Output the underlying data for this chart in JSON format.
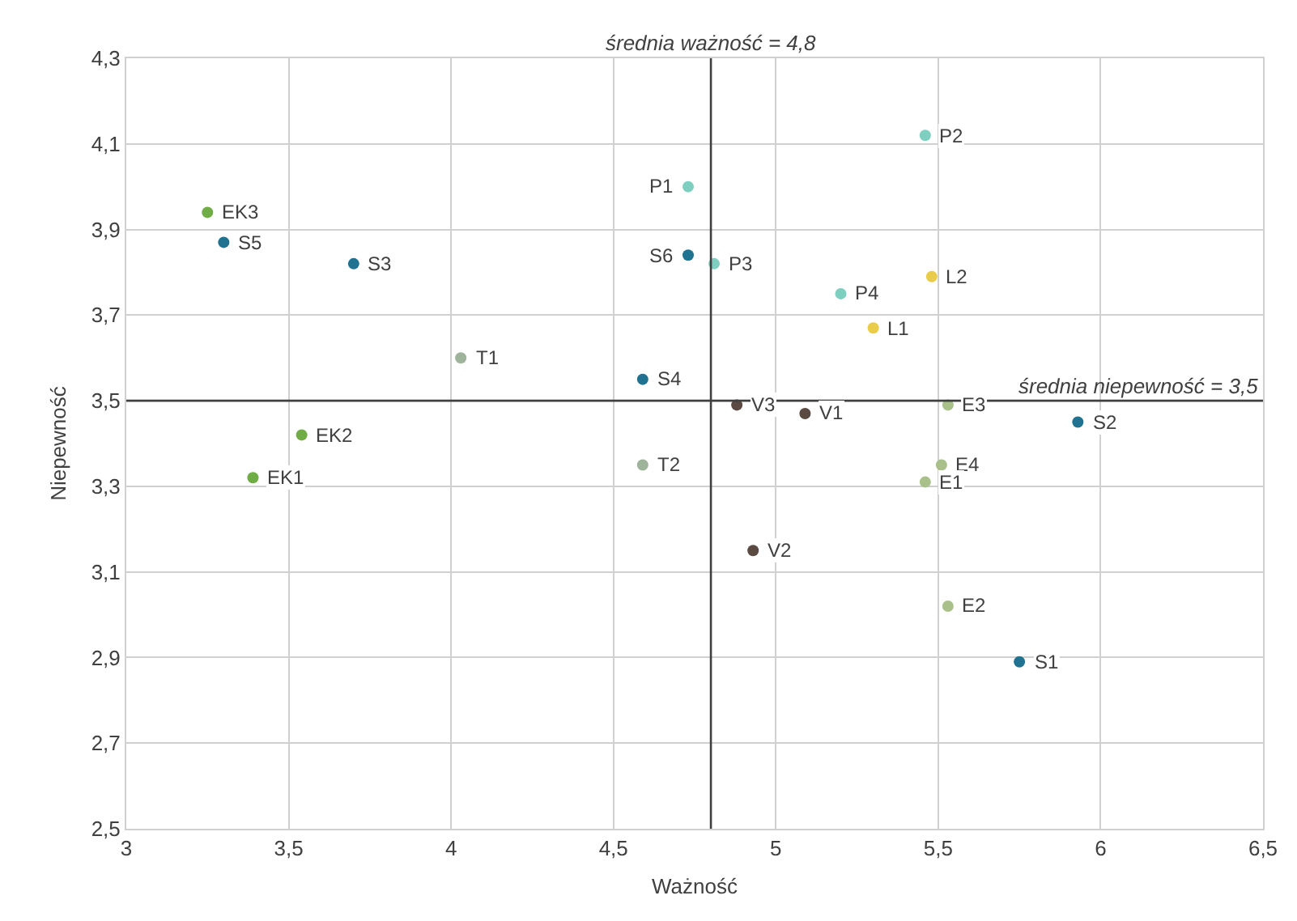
{
  "chart_data": {
    "type": "scatter",
    "xlabel": "Ważność",
    "ylabel": "Niepewność",
    "xlim": [
      3,
      6.5
    ],
    "ylim": [
      2.5,
      4.3
    ],
    "xticks": [
      3,
      {
        "value": 3.5,
        "label": "3,5"
      },
      4,
      {
        "value": 4.5,
        "label": "4,5"
      },
      5,
      {
        "value": 5.5,
        "label": "5,5"
      },
      6,
      {
        "value": 6.5,
        "label": "6,5"
      }
    ],
    "yticks": [
      {
        "value": 2.5,
        "label": "2,5"
      },
      {
        "value": 2.7,
        "label": "2,7"
      },
      {
        "value": 2.9,
        "label": "2,9"
      },
      {
        "value": 3.1,
        "label": "3,1"
      },
      {
        "value": 3.3,
        "label": "3,3"
      },
      {
        "value": 3.5,
        "label": "3,5"
      },
      {
        "value": 3.7,
        "label": "3,7"
      },
      {
        "value": 3.9,
        "label": "3,9"
      },
      {
        "value": 4.1,
        "label": "4,1"
      },
      {
        "value": 4.3,
        "label": "4,3"
      }
    ],
    "grid": true,
    "marker": "circle",
    "series": [
      {
        "color": "#70ad47",
        "x": [
          3.25,
          3.54,
          3.39
        ],
        "values": [
          3.94,
          3.42,
          3.32
        ]
      },
      {
        "color": "#1f7391",
        "x": [
          3.3,
          3.7,
          4.73,
          4.59,
          5.93,
          5.75
        ],
        "values": [
          3.87,
          3.82,
          3.84,
          3.55,
          3.45,
          2.89
        ]
      },
      {
        "color": "#7fcfc0",
        "x": [
          5.46,
          4.73,
          4.81,
          5.2
        ],
        "values": [
          4.12,
          4.0,
          3.82,
          3.75
        ]
      },
      {
        "color": "#e8cc4a",
        "x": [
          5.48,
          5.3
        ],
        "values": [
          3.79,
          3.67
        ]
      },
      {
        "color": "#9db39a",
        "x": [
          4.03,
          4.59
        ],
        "values": [
          3.6,
          3.35
        ]
      },
      {
        "color": "#5a4a42",
        "x": [
          4.88,
          5.09,
          4.93
        ],
        "values": [
          3.49,
          3.47,
          3.15
        ]
      },
      {
        "color": "#a9c08a",
        "x": [
          5.53,
          5.51,
          5.46,
          5.53
        ],
        "values": [
          3.49,
          3.35,
          3.31,
          3.02
        ]
      }
    ],
    "ref_lines": [
      {
        "axis": "x",
        "value": 4.8,
        "label": "średnia ważność = 4,8",
        "color": "#404040"
      },
      {
        "axis": "y",
        "value": 3.5,
        "label": "średnia niepewność = 3,5",
        "color": "#404040"
      }
    ],
    "annotations": [
      {
        "text": "EK3",
        "x": 3.25,
        "y": 3.94
      },
      {
        "text": "EK2",
        "x": 3.54,
        "y": 3.42
      },
      {
        "text": "EK1",
        "x": 3.39,
        "y": 3.32
      },
      {
        "text": "S5",
        "x": 3.3,
        "y": 3.87
      },
      {
        "text": "S3",
        "x": 3.7,
        "y": 3.82
      },
      {
        "text": "S6",
        "x": 4.73,
        "y": 3.84
      },
      {
        "text": "S4",
        "x": 4.59,
        "y": 3.55
      },
      {
        "text": "S2",
        "x": 5.93,
        "y": 3.45
      },
      {
        "text": "S1",
        "x": 5.75,
        "y": 2.89
      },
      {
        "text": "P2",
        "x": 5.46,
        "y": 4.12
      },
      {
        "text": "P1",
        "x": 4.73,
        "y": 4.0
      },
      {
        "text": "P3",
        "x": 4.81,
        "y": 3.82
      },
      {
        "text": "P4",
        "x": 5.2,
        "y": 3.75
      },
      {
        "text": "L2",
        "x": 5.48,
        "y": 3.79
      },
      {
        "text": "L1",
        "x": 5.3,
        "y": 3.67
      },
      {
        "text": "T1",
        "x": 4.03,
        "y": 3.6
      },
      {
        "text": "T2",
        "x": 4.59,
        "y": 3.35
      },
      {
        "text": "V3",
        "x": 4.88,
        "y": 3.49
      },
      {
        "text": "V1",
        "x": 5.09,
        "y": 3.47
      },
      {
        "text": "V2",
        "x": 4.93,
        "y": 3.15
      },
      {
        "text": "E3",
        "x": 5.53,
        "y": 3.49
      },
      {
        "text": "E4",
        "x": 5.51,
        "y": 3.35
      },
      {
        "text": "E1",
        "x": 5.46,
        "y": 3.31
      },
      {
        "text": "E2",
        "x": 5.53,
        "y": 3.02
      }
    ]
  }
}
